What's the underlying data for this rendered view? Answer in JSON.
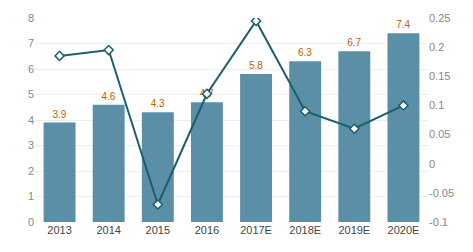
{
  "chart_data": {
    "type": "bar",
    "categories": [
      "2013",
      "2014",
      "2015",
      "2016",
      "2017E",
      "2018E",
      "2019E",
      "2020E"
    ],
    "series": [
      {
        "type": "bar",
        "color": "#5b8fa8",
        "data_labels": true,
        "values": [
          3.9,
          4.6,
          4.3,
          4.7,
          5.8,
          6.3,
          6.7,
          7.4
        ]
      },
      {
        "type": "line",
        "axis": "y2",
        "color": "#1a5f6a",
        "marker": "diamond",
        "line_style": "solid",
        "values": [
          0.185,
          0.195,
          -0.07,
          0.12,
          0.245,
          0.09,
          0.06,
          0.1
        ]
      }
    ],
    "ylim": [
      0,
      8
    ],
    "yticks": [
      0,
      1,
      2,
      3,
      4,
      5,
      6,
      7,
      8
    ],
    "y2lim": [
      -0.1,
      0.25
    ],
    "y2ticks": [
      -0.1,
      -0.05,
      0,
      0.05,
      0.1,
      0.15,
      0.2,
      0.25
    ],
    "grid": true
  }
}
